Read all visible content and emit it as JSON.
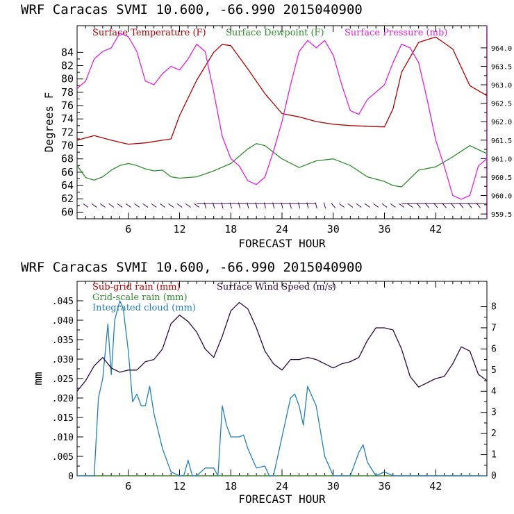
{
  "chart_data": [
    {
      "type": "line",
      "title": "WRF  Caracas SVMI  10.600, -66.990  2015040900",
      "xlabel": "FORECAST HOUR",
      "ylabel": "Degrees F",
      "xlim": [
        0,
        48
      ],
      "ylim": [
        59,
        88
      ],
      "y2lim": [
        959.37,
        964.6
      ],
      "xticks": [
        "6",
        "12",
        "18",
        "24",
        "30",
        "36",
        "42"
      ],
      "yticks": [
        "60",
        "62",
        "64",
        "66",
        "68",
        "70",
        "72",
        "74",
        "76",
        "78",
        "80",
        "82",
        "84"
      ],
      "y2ticks": [
        "959.5",
        "960.0",
        "960.5",
        "961.0",
        "961.5",
        "962.0",
        "962.5",
        "963.0",
        "963.5",
        "964.0"
      ],
      "grid": false,
      "legend_position": "top",
      "series": [
        {
          "name": "Surface Temperature (F)",
          "color": "#b00000",
          "axis": "left",
          "x": [
            0,
            2,
            4,
            6,
            8,
            10,
            11,
            12,
            14,
            16,
            17,
            18,
            20,
            22,
            24,
            26,
            28,
            30,
            32,
            34,
            36,
            37,
            38,
            40,
            42,
            44,
            46,
            48
          ],
          "values": [
            70.8,
            71.5,
            70.8,
            70.2,
            70.4,
            70.8,
            71.0,
            74.5,
            79.8,
            84.0,
            85.2,
            85.0,
            81.5,
            77.8,
            74.8,
            74.3,
            73.6,
            73.2,
            73.0,
            72.9,
            72.8,
            75.5,
            81.0,
            85.5,
            86.3,
            84.5,
            79.0,
            77.5
          ]
        },
        {
          "name": "Surface Dewpoint (F)",
          "color": "#2e8b2e",
          "axis": "left",
          "x": [
            0,
            1,
            2,
            3,
            4,
            5,
            6,
            7,
            8,
            9,
            10,
            11,
            12,
            14,
            16,
            18,
            20,
            21,
            22,
            24,
            26,
            28,
            30,
            32,
            34,
            36,
            37,
            38,
            40,
            42,
            44,
            46,
            48
          ],
          "values": [
            67.0,
            65.2,
            64.8,
            65.3,
            66.3,
            67.0,
            67.3,
            67.0,
            66.5,
            66.2,
            66.3,
            65.3,
            65.1,
            65.3,
            66.2,
            67.3,
            69.5,
            70.3,
            70.0,
            68.0,
            66.7,
            67.7,
            68.0,
            67.0,
            65.3,
            64.6,
            64.0,
            63.8,
            66.3,
            66.8,
            68.3,
            70.0,
            68.8
          ]
        },
        {
          "name": "Surface Pressure (mb)",
          "color": "#e020e0",
          "axis": "right",
          "x": [
            0,
            1,
            2,
            3,
            4,
            5,
            6,
            7,
            8,
            9,
            10,
            11,
            12,
            13,
            14,
            15,
            16,
            17,
            18,
            19,
            20,
            21,
            22,
            23,
            24,
            25,
            26,
            27,
            28,
            29,
            30,
            31,
            32,
            33,
            34,
            35,
            36,
            37,
            38,
            39,
            40,
            41,
            42,
            43,
            44,
            45,
            46,
            47,
            48
          ],
          "values": [
            962.9,
            963.1,
            963.7,
            963.9,
            964.0,
            964.4,
            964.3,
            963.9,
            963.1,
            963.0,
            963.3,
            963.5,
            963.4,
            963.7,
            964.1,
            963.9,
            962.8,
            961.6,
            961.0,
            960.8,
            960.4,
            960.3,
            960.5,
            961.2,
            962.0,
            963.0,
            963.9,
            964.2,
            964.0,
            964.2,
            963.8,
            963.0,
            962.3,
            962.2,
            962.6,
            962.8,
            963.0,
            963.6,
            964.1,
            964.0,
            963.6,
            962.6,
            961.5,
            960.8,
            960.0,
            959.9,
            960.0,
            960.8,
            961.0
          ]
        }
      ]
    },
    {
      "type": "line",
      "title": "WRF  Caracas SVMI  10.600, -66.990  2015040900",
      "xlabel": "FORECAST HOUR",
      "ylabel": "mm",
      "xlim": [
        0,
        48
      ],
      "ylim": [
        0,
        0.05
      ],
      "y2lim": [
        0,
        9.2
      ],
      "xticks": [
        "6",
        "12",
        "18",
        "24",
        "30",
        "36",
        "42"
      ],
      "yticks": [
        "0",
        ".005",
        ".010",
        ".015",
        ".020",
        ".025",
        ".030",
        ".035",
        ".040",
        ".045"
      ],
      "y2ticks": [
        "0",
        "1",
        "2",
        "3",
        "4",
        "5",
        "6",
        "7",
        "8"
      ],
      "grid": false,
      "legend_position": "top-left",
      "series": [
        {
          "name": "Sub-grid rain (mm)",
          "color": "#b00000",
          "axis": "left",
          "x": [
            0,
            48
          ],
          "values": [
            0,
            0
          ]
        },
        {
          "name": "Grid-scale rain (mm)",
          "color": "#2e8b2e",
          "axis": "left",
          "x": [
            0,
            48
          ],
          "values": [
            0,
            0
          ]
        },
        {
          "name": "Integrated cloud (mm)",
          "color": "#1f7fc0",
          "axis": "left",
          "x": [
            0,
            2,
            2.5,
            3,
            3.6,
            4,
            4.4,
            5,
            5.4,
            6,
            6.5,
            7,
            7.5,
            8,
            8.5,
            9,
            10,
            11,
            12,
            12.5,
            13,
            13.5,
            14,
            15,
            16,
            16.5,
            17,
            17.5,
            18,
            19,
            19.5,
            20,
            21,
            22,
            22.5,
            23,
            24,
            25,
            25.5,
            26,
            26.5,
            27,
            28,
            29,
            30,
            31,
            32,
            32.5,
            33,
            33.5,
            34,
            35,
            36,
            37,
            38,
            48
          ],
          "values": [
            0,
            0,
            0.02,
            0.025,
            0.039,
            0.026,
            0.04,
            0.045,
            0.043,
            0.032,
            0.019,
            0.021,
            0.018,
            0.018,
            0.023,
            0.016,
            0.007,
            0.001,
            0,
            0,
            0.004,
            0,
            0,
            0.002,
            0.002,
            0,
            0.018,
            0.013,
            0.01,
            0.01,
            0.0105,
            0.007,
            0.002,
            0.0025,
            0,
            0,
            0.01,
            0.02,
            0.021,
            0.018,
            0.013,
            0.023,
            0.018,
            0.005,
            0,
            0,
            0,
            0.003,
            0.006,
            0.008,
            0.0035,
            0,
            0.001,
            0,
            0,
            0
          ]
        },
        {
          "name": "Surface Wind Speed (m/s)",
          "color": "#2a0a3a",
          "axis": "right",
          "x": [
            0,
            1,
            2,
            3,
            4,
            5,
            6,
            7,
            8,
            9,
            10,
            11,
            12,
            13,
            14,
            15,
            16,
            17,
            18,
            19,
            20,
            21,
            22,
            23,
            24,
            25,
            26,
            27,
            28,
            29,
            30,
            31,
            32,
            33,
            34,
            35,
            36,
            37,
            38,
            39,
            40,
            41,
            42,
            43,
            44,
            45,
            46,
            47,
            48
          ],
          "values": [
            4.0,
            4.5,
            5.2,
            5.6,
            5.1,
            4.9,
            5.0,
            5.0,
            5.4,
            5.5,
            6.0,
            7.2,
            7.6,
            7.3,
            6.8,
            6.0,
            5.6,
            6.6,
            7.8,
            8.2,
            7.9,
            7.0,
            5.9,
            5.3,
            5.0,
            5.5,
            5.5,
            5.6,
            5.5,
            5.3,
            5.1,
            5.3,
            5.4,
            5.6,
            6.4,
            7.0,
            7.0,
            6.9,
            6.0,
            4.7,
            4.2,
            4.4,
            4.6,
            4.7,
            5.3,
            6.1,
            5.9,
            4.8,
            4.5
          ]
        }
      ]
    }
  ],
  "annotations": {
    "wind_barb_row": "wind barbs near 61 F along the bottom of the upper panel"
  }
}
